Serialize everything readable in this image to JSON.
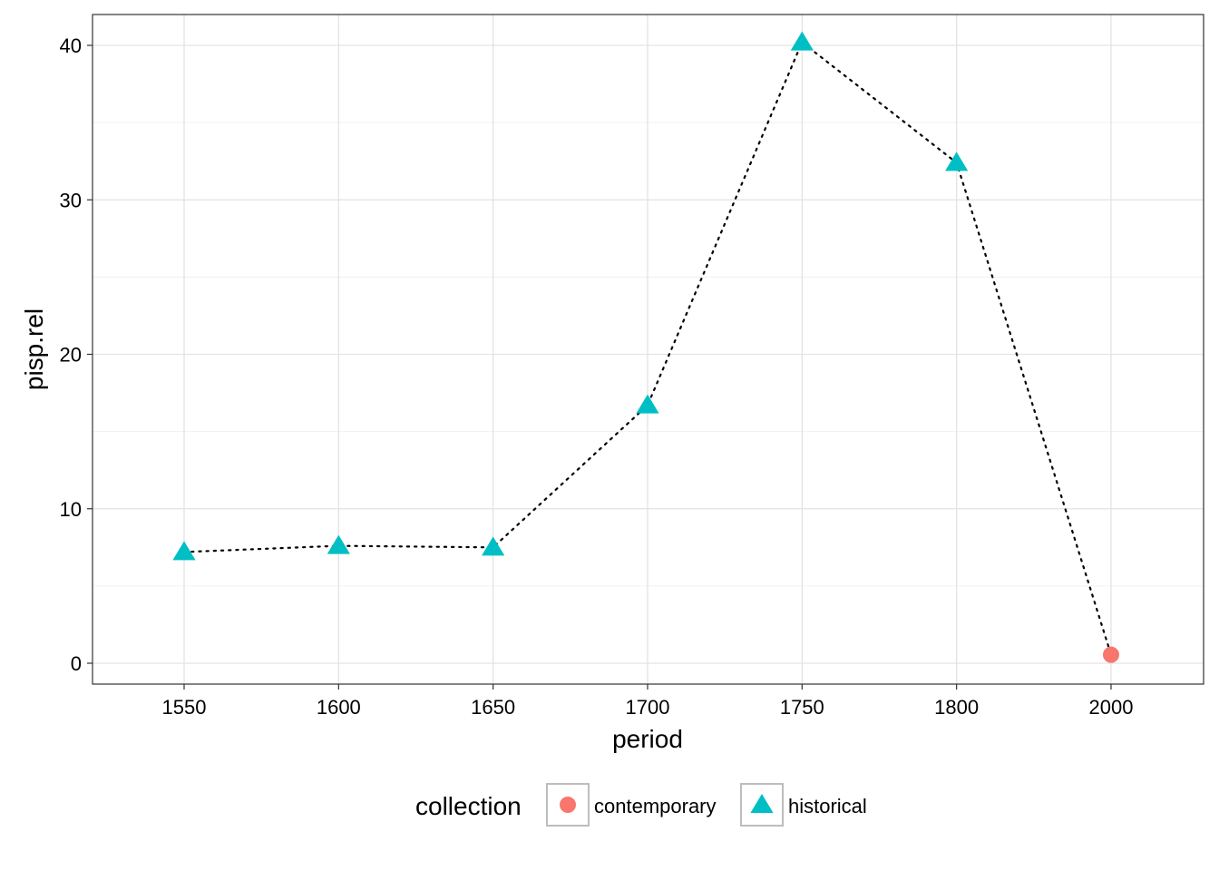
{
  "chart_data": {
    "type": "scatter",
    "xlabel": "period",
    "ylabel": "pisp.rel",
    "x_categories": [
      "1550",
      "1600",
      "1650",
      "1700",
      "1750",
      "1800",
      "2000"
    ],
    "y_ticks": [
      0,
      10,
      20,
      30,
      40
    ],
    "ylim": [
      -1.35,
      42.0
    ],
    "grid": true,
    "line_style": "dotted",
    "points": [
      {
        "x": "1550",
        "y": 7.2,
        "collection": "historical"
      },
      {
        "x": "1600",
        "y": 7.6,
        "collection": "historical"
      },
      {
        "x": "1650",
        "y": 7.5,
        "collection": "historical"
      },
      {
        "x": "1700",
        "y": 16.7,
        "collection": "historical"
      },
      {
        "x": "1750",
        "y": 40.2,
        "collection": "historical"
      },
      {
        "x": "1800",
        "y": 32.4,
        "collection": "historical"
      },
      {
        "x": "2000",
        "y": 0.55,
        "collection": "contemporary"
      }
    ],
    "legend": {
      "title": "collection",
      "placement": "bottom",
      "entries": [
        {
          "label": "contemporary",
          "shape": "circle",
          "color": "#F8766D"
        },
        {
          "label": "historical",
          "shape": "triangle",
          "color": "#00BFC4"
        }
      ]
    }
  }
}
